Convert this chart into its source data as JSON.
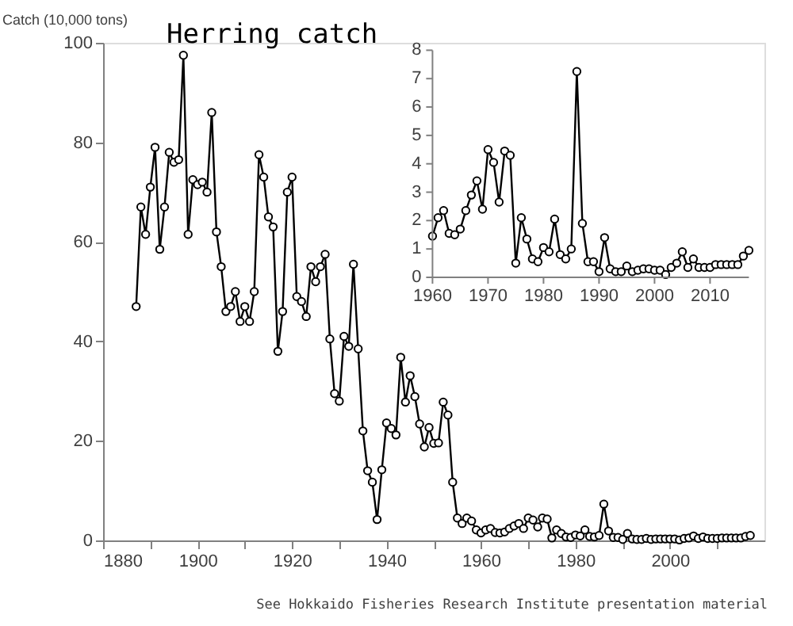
{
  "chart_data": [
    {
      "type": "line",
      "title": "Herring catch",
      "ylabel": "Catch (10,000 tons)",
      "color": "#000000",
      "marker": "circle",
      "line_style": "solid",
      "annotations": [
        "See Hokkaido Fisheries Research Institute presentation material"
      ],
      "x": [
        1887,
        1888,
        1889,
        1890,
        1891,
        1892,
        1893,
        1894,
        1895,
        1896,
        1897,
        1898,
        1899,
        1900,
        1901,
        1902,
        1903,
        1904,
        1905,
        1906,
        1907,
        1908,
        1909,
        1910,
        1911,
        1912,
        1913,
        1914,
        1915,
        1916,
        1917,
        1918,
        1919,
        1920,
        1921,
        1922,
        1923,
        1924,
        1925,
        1926,
        1927,
        1928,
        1929,
        1930,
        1931,
        1932,
        1933,
        1934,
        1935,
        1936,
        1937,
        1938,
        1939,
        1940,
        1941,
        1942,
        1943,
        1944,
        1945,
        1946,
        1947,
        1948,
        1949,
        1950,
        1951,
        1952,
        1953,
        1954,
        1955,
        1956,
        1957,
        1958,
        1959,
        1960,
        1961,
        1962,
        1963,
        1964,
        1965,
        1966,
        1967,
        1968,
        1969,
        1970,
        1971,
        1972,
        1973,
        1974,
        1975,
        1976,
        1977,
        1978,
        1979,
        1980,
        1981,
        1982,
        1983,
        1984,
        1985,
        1986,
        1987,
        1988,
        1989,
        1990,
        1991,
        1992,
        1993,
        1994,
        1995,
        1996,
        1997,
        1998,
        1999,
        2000,
        2001,
        2002,
        2003,
        2004,
        2005,
        2006,
        2007,
        2008,
        2009,
        2010,
        2011,
        2012,
        2013,
        2014,
        2015,
        2016,
        2017
      ],
      "values": [
        47,
        67,
        61.5,
        71,
        79,
        58.5,
        67,
        78,
        76,
        76.5,
        97.5,
        61.5,
        72.5,
        71.5,
        72,
        70,
        86,
        62,
        55,
        46,
        47,
        50,
        44,
        47,
        44,
        50,
        77.5,
        73,
        65,
        63,
        38,
        46,
        70,
        73,
        49,
        48,
        45,
        55,
        52,
        55,
        57.5,
        40.5,
        29.5,
        28,
        41,
        39,
        55.5,
        38.5,
        22,
        14,
        11.7,
        4.2,
        14.2,
        23.6,
        22.5,
        21.2,
        36.8,
        27.8,
        33.1,
        28.9,
        23.4,
        18.8,
        22.7,
        19.5,
        19.6,
        27.8,
        25.2,
        11.7,
        4.5,
        3.4,
        4.5,
        3.9,
        2.1,
        1.5,
        2.1,
        2.4,
        1.6,
        1.5,
        1.7,
        2.4,
        2.9,
        3.4,
        2.4,
        4.5,
        4.1,
        2.7,
        4.5,
        4.3,
        0.5,
        2.1,
        1.4,
        0.7,
        0.6,
        1.1,
        0.9,
        2.1,
        0.8,
        0.7,
        1.0,
        7.3,
        1.9,
        0.6,
        0.6,
        0.2,
        1.4,
        0.3,
        0.2,
        0.2,
        0.4,
        0.2,
        0.3,
        0.3,
        0.3,
        0.3,
        0.3,
        0.1,
        0.4,
        0.5,
        0.9,
        0.4,
        0.7,
        0.4,
        0.4,
        0.4,
        0.5,
        0.5,
        0.5,
        0.5,
        0.5,
        0.8,
        1.0
      ],
      "xlim": [
        1880,
        2020
      ],
      "xticks": [
        1880,
        {
          "value": 1890,
          "label": null
        },
        1900,
        {
          "value": 1910,
          "label": null
        },
        1920,
        {
          "value": 1930,
          "label": null
        },
        1940,
        {
          "value": 1950,
          "label": null
        },
        1960,
        {
          "value": 1970,
          "label": null
        },
        1980,
        {
          "value": 1990,
          "label": null
        },
        2000,
        {
          "value": 2010,
          "label": null
        }
      ],
      "ylim": [
        0,
        100
      ],
      "yticks": [
        0,
        20,
        40,
        60,
        80,
        100
      ]
    },
    {
      "type": "line",
      "color": "#000000",
      "marker": "circle",
      "line_style": "solid",
      "x": [
        1960,
        1961,
        1962,
        1963,
        1964,
        1965,
        1966,
        1967,
        1968,
        1969,
        1970,
        1971,
        1972,
        1973,
        1974,
        1975,
        1976,
        1977,
        1978,
        1979,
        1980,
        1981,
        1982,
        1983,
        1984,
        1985,
        1986,
        1987,
        1988,
        1989,
        1990,
        1991,
        1992,
        1993,
        1994,
        1995,
        1996,
        1997,
        1998,
        1999,
        2000,
        2001,
        2002,
        2003,
        2004,
        2005,
        2006,
        2007,
        2008,
        2009,
        2010,
        2011,
        2012,
        2013,
        2014,
        2015,
        2016,
        2017
      ],
      "values": [
        1.45,
        2.1,
        2.35,
        1.55,
        1.5,
        1.7,
        2.35,
        2.9,
        3.4,
        2.4,
        4.5,
        4.05,
        2.65,
        4.45,
        4.3,
        0.5,
        2.1,
        1.35,
        0.65,
        0.55,
        1.05,
        0.9,
        2.05,
        0.8,
        0.65,
        1.0,
        7.25,
        1.9,
        0.55,
        0.55,
        0.2,
        1.4,
        0.3,
        0.2,
        0.2,
        0.4,
        0.2,
        0.25,
        0.3,
        0.3,
        0.25,
        0.25,
        0.1,
        0.35,
        0.5,
        0.9,
        0.35,
        0.65,
        0.35,
        0.35,
        0.35,
        0.45,
        0.45,
        0.45,
        0.45,
        0.45,
        0.75,
        0.95
      ],
      "xlim": [
        1960,
        2017
      ],
      "xticks": [
        1960,
        1970,
        1980,
        1990,
        2000,
        2010
      ],
      "ylim": [
        0,
        8
      ],
      "yticks": [
        0,
        1,
        2,
        3,
        4,
        5,
        6,
        7,
        8
      ]
    }
  ]
}
